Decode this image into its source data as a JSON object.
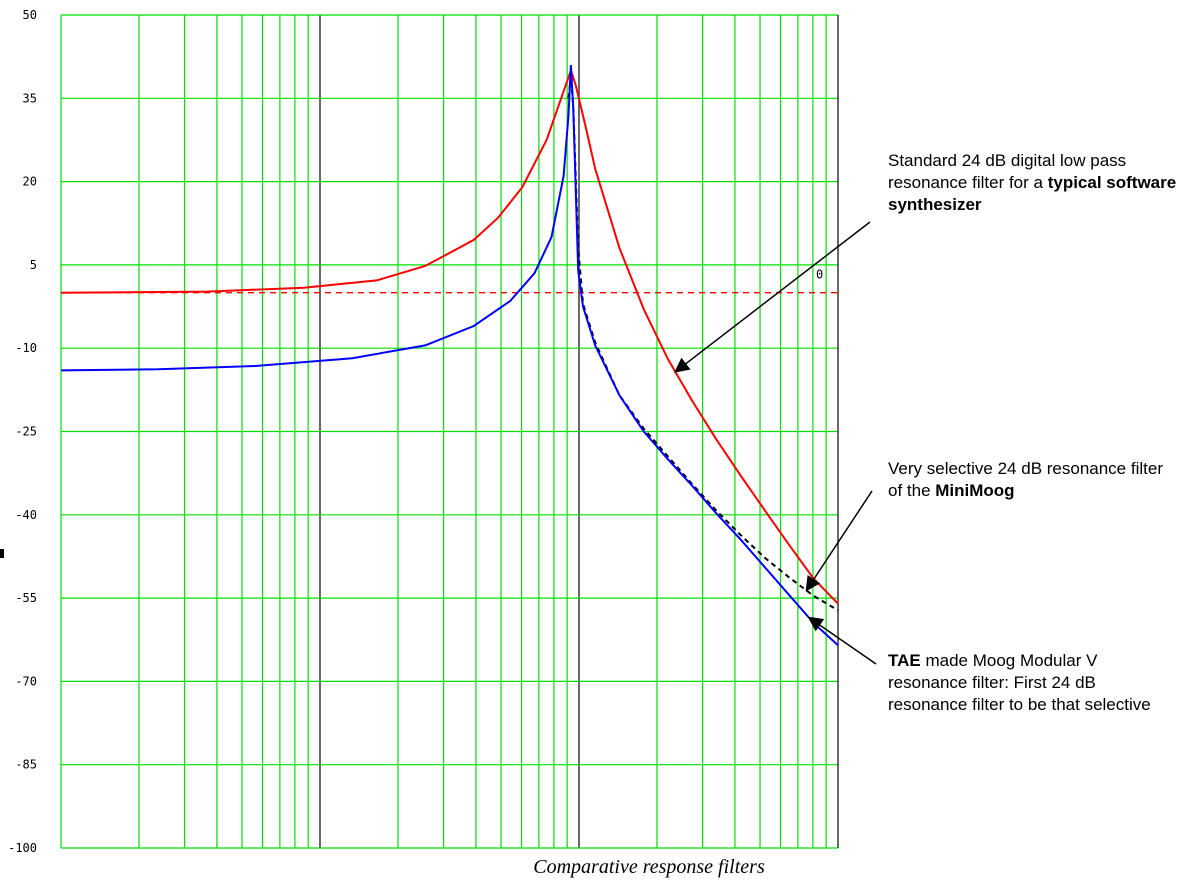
{
  "chart_data": {
    "type": "line",
    "title": "",
    "xlabel": "",
    "ylabel": "",
    "x_scale": "log",
    "x_decades": 3,
    "grid": true,
    "grid_color": "#00e000",
    "ylim": [
      -100,
      50
    ],
    "y_ticks": [
      "50",
      "35",
      "20",
      "5",
      "-10",
      "-25",
      "-40",
      "-55",
      "-70",
      "-85",
      "-100"
    ],
    "reference_line": {
      "value": 0,
      "label": "0",
      "color": "#ff0000",
      "style": "dashed"
    },
    "resonance_offset_decades": 0.04,
    "series": [
      {
        "id": "software",
        "color": "#ff0000",
        "points": [
          [
            -1.6,
            0.0
          ],
          [
            -1.0,
            0.2
          ],
          [
            -0.6,
            0.9
          ],
          [
            -0.3,
            2.2
          ],
          [
            -0.1,
            4.8
          ],
          [
            0.1,
            9.5
          ],
          [
            0.2,
            13.5
          ],
          [
            0.3,
            19.0
          ],
          [
            0.4,
            27.5
          ],
          [
            0.44,
            32.5
          ],
          [
            0.48,
            37.5
          ],
          [
            0.5,
            40.0
          ],
          [
            0.52,
            37.3
          ],
          [
            0.56,
            30.0
          ],
          [
            0.6,
            22.3
          ],
          [
            0.7,
            8.0
          ],
          [
            0.8,
            -3.0
          ],
          [
            0.9,
            -12.0
          ],
          [
            1.0,
            -19.5
          ],
          [
            1.1,
            -26.5
          ],
          [
            1.2,
            -33.0
          ],
          [
            1.3,
            -39.3
          ],
          [
            1.4,
            -45.5
          ],
          [
            1.5,
            -51.5
          ],
          [
            1.6,
            -56.0
          ]
        ]
      },
      {
        "id": "minimoog",
        "color": "#000000",
        "style": "dashed",
        "points": [
          [
            0.49,
            35.0
          ],
          [
            0.5,
            39.0
          ],
          [
            0.51,
            33.5
          ],
          [
            0.53,
            8.0
          ],
          [
            0.55,
            -2.0
          ],
          [
            0.6,
            -9.0
          ],
          [
            0.7,
            -18.5
          ],
          [
            0.8,
            -24.5
          ],
          [
            0.9,
            -29.5
          ],
          [
            1.0,
            -34.5
          ],
          [
            1.1,
            -39.3
          ],
          [
            1.2,
            -43.7
          ],
          [
            1.3,
            -47.8
          ],
          [
            1.4,
            -51.3
          ],
          [
            1.5,
            -54.6
          ],
          [
            1.6,
            -57.2
          ]
        ]
      },
      {
        "id": "tae",
        "color": "#0000ff",
        "points": [
          [
            -1.6,
            -14.0
          ],
          [
            -1.2,
            -13.8
          ],
          [
            -0.8,
            -13.2
          ],
          [
            -0.4,
            -11.8
          ],
          [
            -0.1,
            -9.5
          ],
          [
            0.1,
            -6.0
          ],
          [
            0.25,
            -1.5
          ],
          [
            0.35,
            3.5
          ],
          [
            0.42,
            10.0
          ],
          [
            0.47,
            21.0
          ],
          [
            0.49,
            32.0
          ],
          [
            0.5,
            41.0
          ],
          [
            0.51,
            33.0
          ],
          [
            0.53,
            4.0
          ],
          [
            0.55,
            -2.5
          ],
          [
            0.6,
            -9.5
          ],
          [
            0.7,
            -18.5
          ],
          [
            0.8,
            -25.0
          ],
          [
            0.9,
            -30.0
          ],
          [
            1.0,
            -34.8
          ],
          [
            1.1,
            -39.8
          ],
          [
            1.2,
            -44.5
          ],
          [
            1.3,
            -49.5
          ],
          [
            1.4,
            -54.5
          ],
          [
            1.5,
            -59.5
          ],
          [
            1.6,
            -63.5
          ]
        ]
      }
    ]
  },
  "annotations": [
    {
      "text": "Standard 24 dB digital low pass resonance filter for a ",
      "bold": "typical software synthesizer",
      "bold_first": false,
      "target_series": "software",
      "target_x": 0.93
    },
    {
      "text": "Very selective 24 dB resonance filter of the ",
      "bold": "MiniMoog",
      "bold_first": false,
      "target_series": "minimoog",
      "target_x": 1.47
    },
    {
      "text": " made Moog Modular V resonance filter: First 24 dB resonance filter to be that selective",
      "bold": "TAE",
      "bold_first": true,
      "target_series": "tae",
      "target_x": 1.48
    }
  ],
  "caption": "Comparative response filters"
}
